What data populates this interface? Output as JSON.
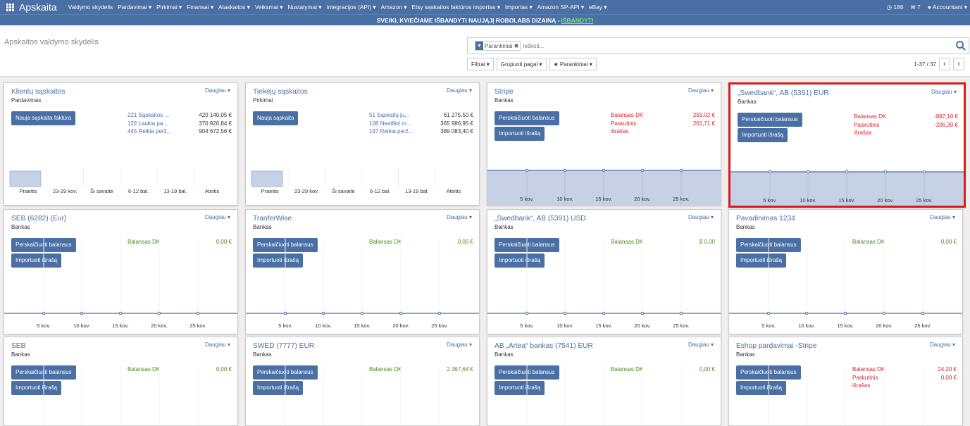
{
  "nav": {
    "brand": "Apskaita",
    "menu": [
      "Valdymo skydelis",
      "Pardavimai ▾",
      "Pirkimai ▾",
      "Finansai ▾",
      "Ataskaitos ▾",
      "Veiksmai ▾",
      "Nustatymai ▾",
      "Integracijos (API) ▾",
      "Amazon ▾",
      "Etsy sąskaitos faktūros importas ▾",
      "Importas ▾",
      "Amazon SP-API ▾",
      "eBay ▾"
    ],
    "notifications": "186",
    "messages": "7",
    "user": "Accountant ▾"
  },
  "banner": {
    "text": "SVEIKI, KVIEČIAME IŠBANDYTI NAUJĄJĮ ROBOLABS DIZAINĄ -",
    "link": "IŠBANDYTI"
  },
  "control": {
    "title": "Apskaitos valdymo skydelis",
    "facet": "Parankiniai",
    "search_placeholder": "Ieškoti...",
    "filters": "Filtrai ▾",
    "groupby": "Grupuoti pagal ▾",
    "favorites": "Parankiniai ▾",
    "pager": "1-37 / 37"
  },
  "more_label": "Daugiau ▾",
  "bar_categories": [
    "Praeitis",
    "23-29 kov.",
    "Ši savaitė",
    "6-12 bal.",
    "13-19 bal.",
    "Ateitis"
  ],
  "line_categories": [
    "5 kov.",
    "10 kov.",
    "15 kov.",
    "20 kov.",
    "25 kov."
  ],
  "cards": [
    {
      "title": "Klientų sąskaitos",
      "subtitle": "Pardavimas",
      "button1": "Nauja sąskaita faktūra",
      "lines": [
        {
          "l": "221 Sąskaitos ...",
          "v": "420 140,05 €"
        },
        {
          "l": "122 Laukia pa...",
          "v": "370 926,84 €"
        },
        {
          "l": "445 Reikia perž...",
          "v": "904 672,56 €"
        }
      ]
    },
    {
      "title": "Tiekėjų sąskaitos",
      "subtitle": "Pirkimai",
      "button1": "Nauja sąskaita",
      "lines": [
        {
          "l": "51 Sąskaitų ju...",
          "v": "61 275,50 €"
        },
        {
          "l": "108 Neatlikti m...",
          "v": "365 986,95 €"
        },
        {
          "l": "197 Reikia perž...",
          "v": "389 083,40 €"
        }
      ]
    },
    {
      "title": "Stripe",
      "subtitle": "Bankas",
      "button1": "Perskaičiuoti balansus",
      "button2": "Importuoti išrašą",
      "bal": [
        {
          "l": "Balansas DK",
          "v": "259,02 €"
        },
        {
          "l": "Paskutinis",
          "v": "261,71 €"
        },
        {
          "l": "išrašas",
          "v": ""
        }
      ]
    },
    {
      "title": "„Swedbank“, AB (5391) EUR",
      "subtitle": "Bankas",
      "button1": "Perskaičiuoti balansus",
      "button2": "Importuoti išrašą",
      "bal": [
        {
          "l": "Balansas DK",
          "v": "-897,10 €"
        },
        {
          "l": "Paskutinis",
          "v": "-206,30 €"
        },
        {
          "l": "išrašas",
          "v": ""
        }
      ]
    },
    {
      "title": "SEB (6282) (Eur)",
      "subtitle": "Bankas",
      "button1": "Perskaičiuoti balansus",
      "button2": "Importuoti išrašą",
      "bal": [
        {
          "l": "Balansas DK",
          "v": "0,00 €"
        }
      ]
    },
    {
      "title": "TranferWise",
      "subtitle": "Bankas",
      "button1": "Perskaičiuoti balansus",
      "button2": "Importuoti išrašą",
      "bal": [
        {
          "l": "Balansas DK",
          "v": "0,00 €"
        }
      ]
    },
    {
      "title": "„Swedbank“, AB (5391) USD",
      "subtitle": "Bankas",
      "button1": "Perskaičiuoti balansus",
      "button2": "Importuoti išrašą",
      "bal": [
        {
          "l": "Balansas DK",
          "v": "$ 0,00"
        }
      ]
    },
    {
      "title": "Pavadinimas 1234",
      "subtitle": "Bankas",
      "button1": "Perskaičiuoti balansus",
      "button2": "Importuoti išrašą",
      "bal": [
        {
          "l": "Balansas DK",
          "v": "0,00 €"
        }
      ]
    },
    {
      "title": "SEB",
      "subtitle": "Bankas",
      "button1": "Perskaičiuoti balansus",
      "button2": "Importuoti išrašą",
      "bal": [
        {
          "l": "Balansas DK",
          "v": "0,00 €"
        }
      ]
    },
    {
      "title": "SWED (7777) EUR",
      "subtitle": "Bankas",
      "button1": "Perskaičiuoti balansus",
      "button2": "Importuoti išrašą",
      "bal": [
        {
          "l": "Balansas DK",
          "v": "2 367,64 €"
        }
      ]
    },
    {
      "title": "AB „Artea“ bankas (7541) EUR",
      "subtitle": "Bankas",
      "button1": "Perskaičiuoti balansus",
      "button2": "Importuoti išrašą",
      "bal": [
        {
          "l": "Balansas DK",
          "v": "0,00 €"
        }
      ]
    },
    {
      "title": "Eshop pardavimai -Stripe",
      "subtitle": "Bankas",
      "button1": "Perskaičiuoti balansus",
      "button2": "Importuoti išrašą",
      "bal": [
        {
          "l": "Balansas DK",
          "v": "24,20 €"
        },
        {
          "l": "Paskutinis",
          "v": "0,00 €"
        },
        {
          "l": "išrašas",
          "v": ""
        }
      ]
    }
  ]
}
